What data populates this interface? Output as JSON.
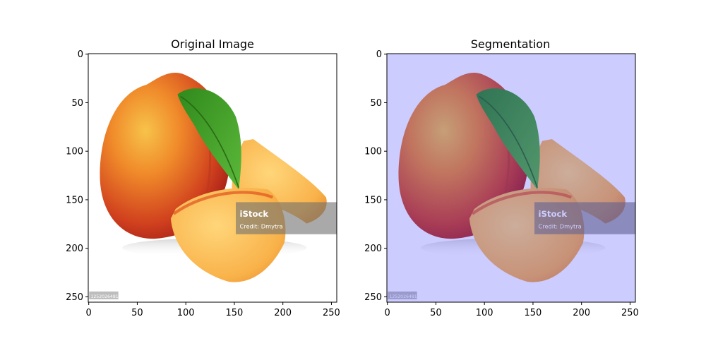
{
  "figure": {
    "panels": [
      {
        "title": "Original Image",
        "tint": null
      },
      {
        "title": "Segmentation",
        "tint": "#3333ff"
      }
    ],
    "x_ticks": [
      "0",
      "50",
      "100",
      "150",
      "200",
      "250"
    ],
    "y_ticks": [
      "0",
      "50",
      "100",
      "150",
      "200",
      "250"
    ],
    "x_tick_values": [
      0,
      50,
      100,
      150,
      200,
      250
    ],
    "y_tick_values": [
      0,
      50,
      100,
      150,
      200,
      250
    ],
    "image_extent": [
      0,
      256
    ],
    "watermark": {
      "brand": "iStock",
      "credit": "Credit: Dmytra",
      "stock_id": "1252026481"
    },
    "colors": {
      "peach_red": "#c62a1c",
      "peach_orange": "#f08a2a",
      "peach_yellow": "#f7c34a",
      "leaf_green": "#3d9a25",
      "flesh": "#fbbf5a",
      "tint_overlay": "#7777ff"
    }
  }
}
